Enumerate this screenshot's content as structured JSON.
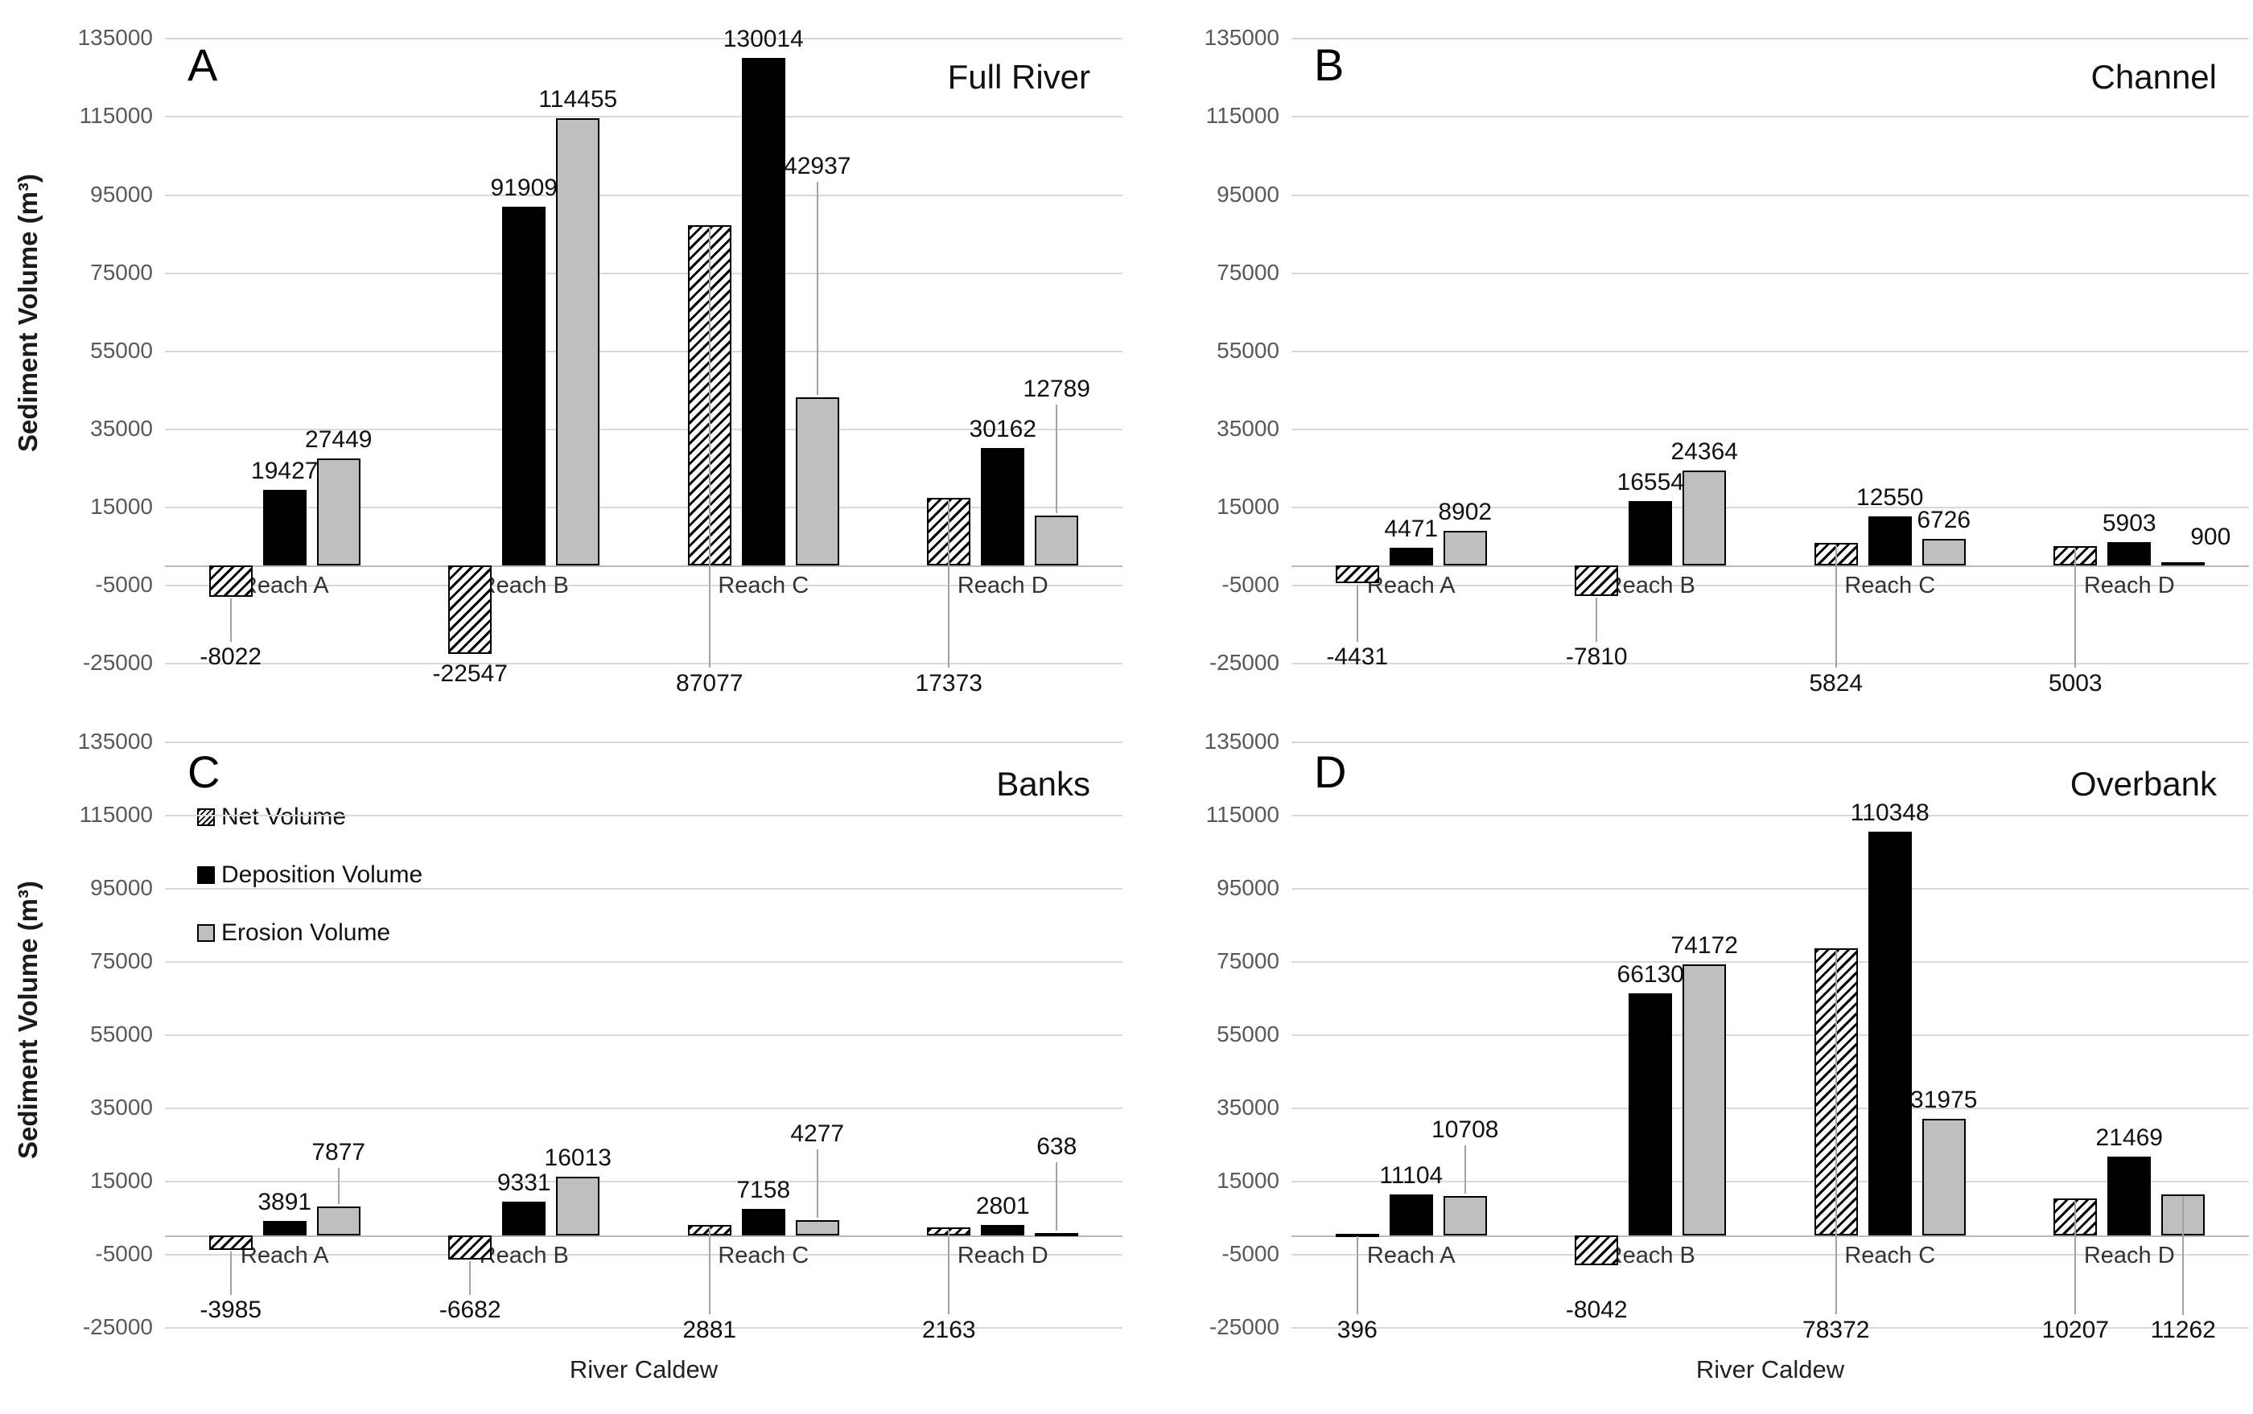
{
  "chart_data": {
    "type": "bar",
    "x_title": "River Caldew",
    "y_title": "Sediment Volume (m³)",
    "categories": [
      "Reach A",
      "Reach B",
      "Reach C",
      "Reach D"
    ],
    "series": [
      {
        "name": "Net Volume",
        "style": "hatched"
      },
      {
        "name": "Deposition Volume",
        "style": "black"
      },
      {
        "name": "Erosion Volume",
        "style": "gray"
      }
    ],
    "y_axis": {
      "min": -25000,
      "max": 135000,
      "step": 20000,
      "ticks": [
        135000,
        115000,
        95000,
        75000,
        55000,
        35000,
        15000,
        -5000,
        -25000
      ]
    },
    "legend_location": "panel C upper-left",
    "colors": {
      "deposition": "#000000",
      "erosion": "#bfbfbf",
      "hatch_fg": "#000000",
      "hatch_bg": "#ffffff",
      "gridline": "#d9d9d9",
      "axis": "#b9b9b9",
      "tick_text": "#595959",
      "leader": "#a3a3a3"
    },
    "panels": [
      {
        "letter": "A",
        "title": "Full River",
        "net": [
          -8022,
          -22547,
          87077,
          17373
        ],
        "deposition": [
          19427,
          91909,
          130014,
          30162
        ],
        "erosion": [
          27449,
          114455,
          42937,
          12789
        ],
        "ero_label_lift": [
          0,
          0,
          270,
          140
        ],
        "ero_label_dx": [
          0,
          0,
          0,
          0
        ]
      },
      {
        "letter": "B",
        "title": "Channel",
        "net": [
          -4431,
          -7810,
          5824,
          5003
        ],
        "deposition": [
          4471,
          16554,
          12550,
          5903
        ],
        "erosion": [
          8902,
          24364,
          6726,
          900
        ],
        "ero_label_lift": [
          0,
          0,
          0,
          14
        ],
        "ero_label_dx": [
          0,
          0,
          0,
          34
        ]
      },
      {
        "letter": "C",
        "title": "Banks",
        "net": [
          -3985,
          -6682,
          2881,
          2163
        ],
        "deposition": [
          3891,
          9331,
          7158,
          2801
        ],
        "erosion": [
          7877,
          16013,
          4277,
          638
        ],
        "ero_label_lift": [
          50,
          0,
          90,
          90
        ],
        "ero_label_dx": [
          0,
          0,
          0,
          0
        ]
      },
      {
        "letter": "D",
        "title": "Overbank",
        "net": [
          396,
          -8042,
          78372,
          10207
        ],
        "deposition": [
          11104,
          66130,
          110348,
          21469
        ],
        "erosion": [
          10708,
          74172,
          31975,
          11262
        ],
        "ero_label_lift": [
          65,
          0,
          0,
          -1
        ],
        "ero_label_dx": [
          0,
          0,
          0,
          0
        ]
      }
    ]
  }
}
